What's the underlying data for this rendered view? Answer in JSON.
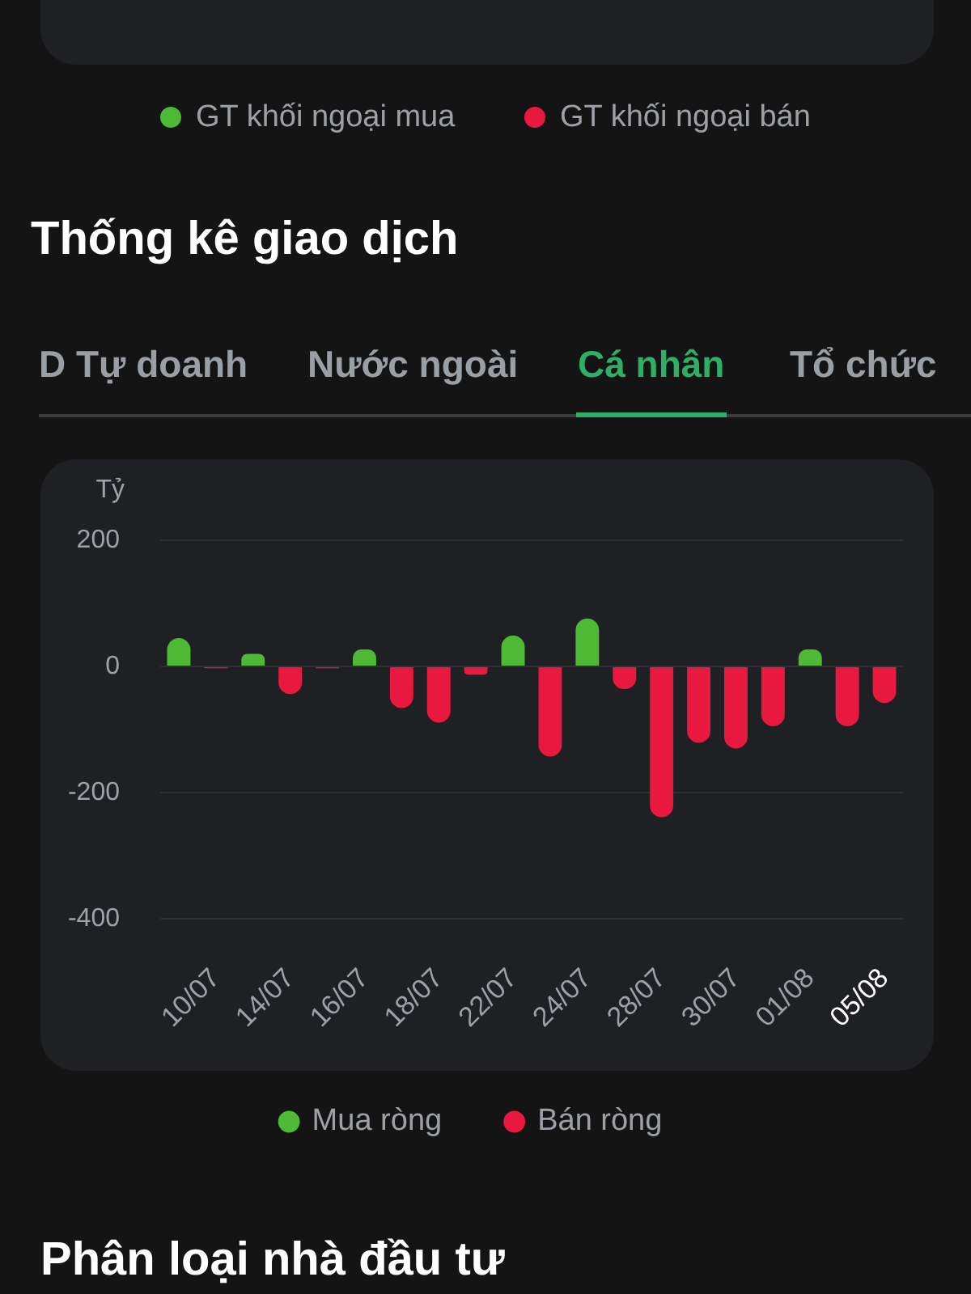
{
  "chart_data": {
    "type": "bar",
    "title": "Thống kê giao dịch",
    "ylabel": "Tỷ",
    "annotations": [
      "GT khối ngoại mua",
      "GT khối ngoại bán",
      "D Tự doanh",
      "Nước ngoài",
      "Cá nhân",
      "Tổ chức",
      "Phân loại nhà đầu tư"
    ],
    "categories": [
      null,
      "10/07",
      null,
      "14/07",
      null,
      "16/07",
      null,
      "18/07",
      null,
      "22/07",
      null,
      "24/07",
      null,
      "28/07",
      null,
      "30/07",
      null,
      "01/08",
      null,
      "05/08"
    ],
    "series": [
      {
        "name": "Mua ròng",
        "color": "#4db935",
        "values": [
          45,
          null,
          20,
          null,
          null,
          27,
          null,
          null,
          null,
          49,
          null,
          76,
          null,
          null,
          null,
          null,
          null,
          27,
          null,
          null
        ]
      },
      {
        "name": "Bán ròng",
        "color": "#e8183f",
        "values": [
          null,
          -3,
          null,
          -44,
          -3,
          null,
          -66,
          -89,
          -13,
          null,
          -143,
          null,
          -36,
          -239,
          -121,
          -130,
          -95,
          null,
          -95,
          -58
        ]
      }
    ],
    "stacked": true,
    "ylim": [
      -400,
      200
    ],
    "yticks": [
      -400,
      -200,
      0,
      200
    ],
    "grid": "y",
    "legend": "bottom"
  }
}
